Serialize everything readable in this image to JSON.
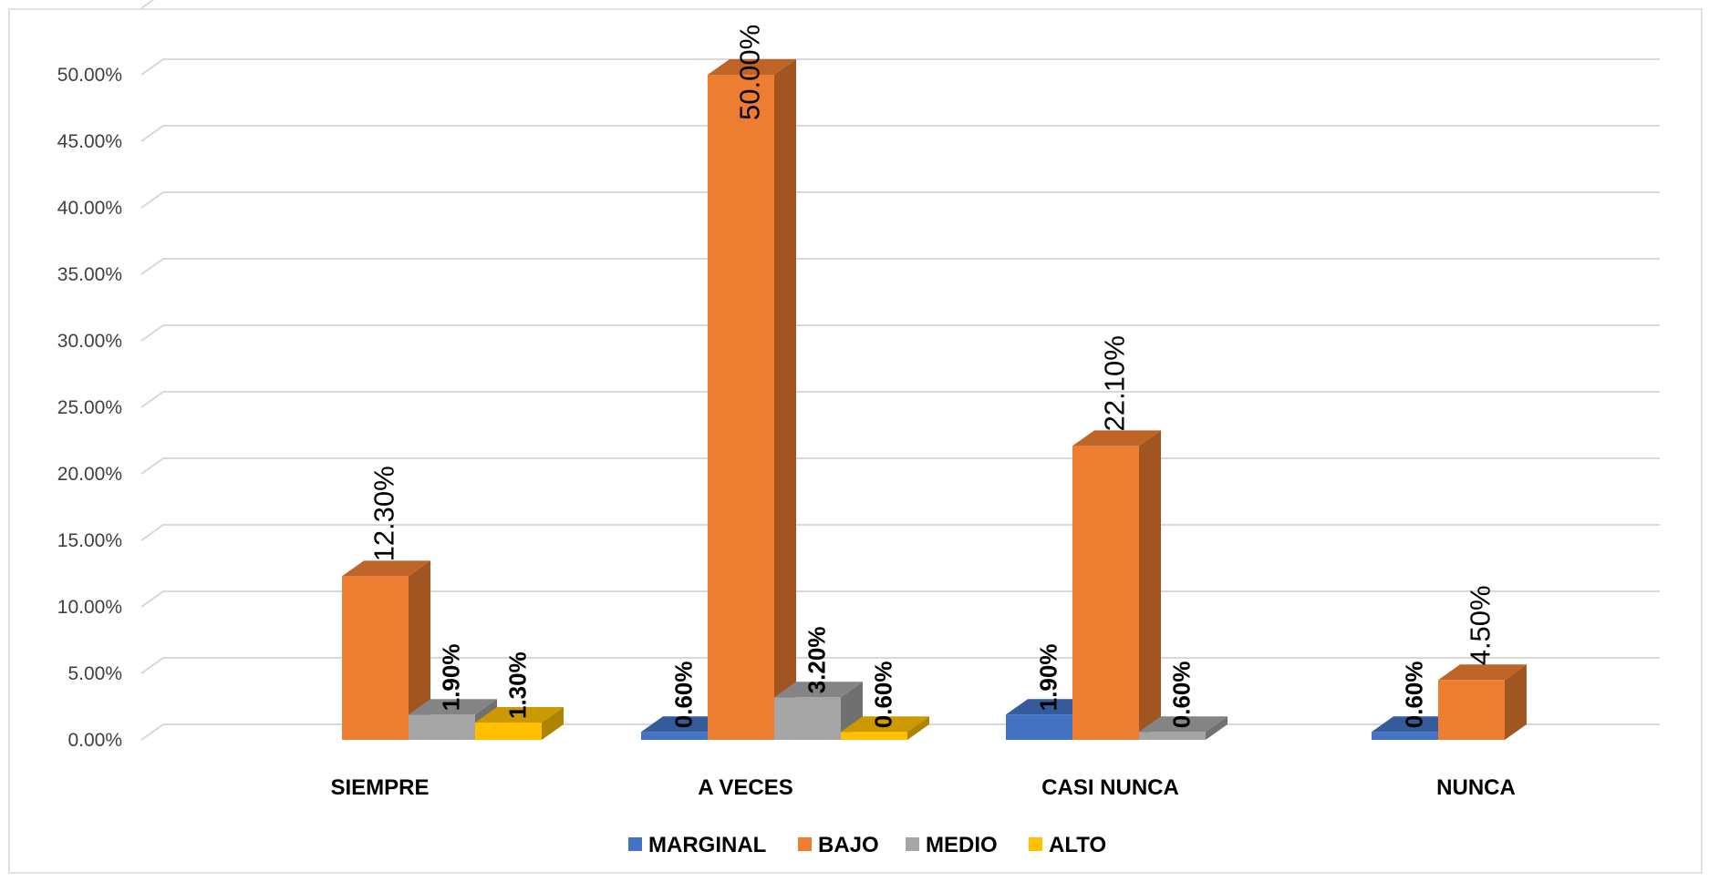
{
  "chart_data": {
    "type": "bar",
    "categories": [
      "SIEMPRE",
      "A VECES",
      "CASI NUNCA",
      "NUNCA"
    ],
    "series": [
      {
        "name": "MARGINAL",
        "values": [
          null,
          0.6,
          1.9,
          0.6
        ],
        "labels": [
          "",
          "0.60%",
          "1.90%",
          "0.60%"
        ]
      },
      {
        "name": "BAJO",
        "values": [
          12.3,
          50.0,
          22.1,
          4.5
        ],
        "labels": [
          "12.30%",
          "50.00%",
          "22.10%",
          "4.50%"
        ]
      },
      {
        "name": "MEDIO",
        "values": [
          1.9,
          3.2,
          0.6,
          null
        ],
        "labels": [
          "1.90%",
          "3.20%",
          "0.60%",
          ""
        ]
      },
      {
        "name": "ALTO",
        "values": [
          1.3,
          0.6,
          null,
          null
        ],
        "labels": [
          "1.30%",
          "0.60%",
          "",
          ""
        ]
      }
    ],
    "yticks": [
      "0.00%",
      "5.00%",
      "10.00%",
      "15.00%",
      "20.00%",
      "25.00%",
      "30.00%",
      "35.00%",
      "40.00%",
      "45.00%",
      "50.00%"
    ],
    "ylim": [
      0,
      50
    ],
    "grid": true,
    "legend_position": "bottom",
    "projection": "3d",
    "colors": {
      "MARGINAL": "#4472C4",
      "BAJO": "#ED7D31",
      "MEDIO": "#A5A5A5",
      "ALTO": "#FFC000",
      "grid": "#D9D9D9",
      "border": "#D9D9D9"
    }
  }
}
